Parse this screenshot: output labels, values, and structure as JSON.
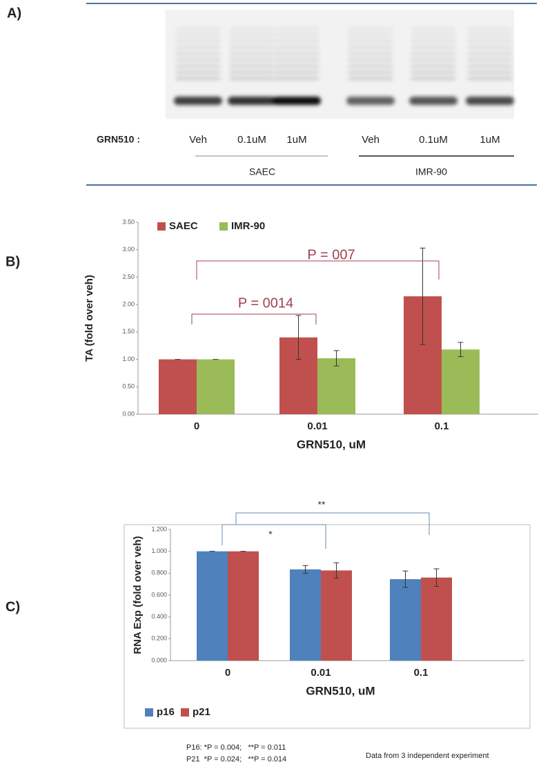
{
  "gel": {
    "panel_label": "A)",
    "row_label": "GRN510 :",
    "lanes": [
      "Veh",
      "0.1uM",
      "1uM",
      "Veh",
      "0.1uM",
      "1uM"
    ],
    "groups": [
      "SAEC",
      "IMR-90"
    ]
  },
  "chart_data": [
    {
      "type": "bar",
      "panel_label": "B)",
      "y_label": "TA (fold over veh)",
      "x_label": "GRN510, uM",
      "categories": [
        "0",
        "0.01",
        "0.1"
      ],
      "series": [
        {
          "name": "SAEC",
          "color": "#c0504d",
          "values": [
            1.0,
            1.4,
            2.15
          ],
          "errors": [
            0,
            0.4,
            0.88
          ]
        },
        {
          "name": "IMR-90",
          "color": "#9bbb59",
          "values": [
            1.0,
            1.02,
            1.18
          ],
          "errors": [
            0,
            0.14,
            0.13
          ]
        }
      ],
      "ylim": [
        0,
        3.5
      ],
      "yticks": [
        {
          "value": 0,
          "label": "0.00"
        },
        {
          "value": 0.5,
          "label": "0.50"
        },
        {
          "value": 1,
          "label": "1.00"
        },
        {
          "value": 1.5,
          "label": "1.50"
        },
        {
          "value": 2,
          "label": "2.00"
        },
        {
          "value": 2.5,
          "label": "2.50"
        },
        {
          "value": 3,
          "label": "3.00"
        },
        {
          "value": 3.5,
          "label": "3.50"
        }
      ],
      "legend": "top-left",
      "annotations": [
        "P = 0014",
        "P = 007"
      ]
    },
    {
      "type": "bar",
      "panel_label": "C)",
      "y_label": "RNA Exp (fold over veh)",
      "x_label": "GRN510, uM",
      "categories": [
        "0",
        "0.01",
        "0.1"
      ],
      "series": [
        {
          "name": "p16",
          "color": "#4f81bd",
          "values": [
            1.0,
            0.835,
            0.745
          ],
          "errors": [
            0,
            0.035,
            0.075
          ]
        },
        {
          "name": "p21",
          "color": "#c0504d",
          "values": [
            1.0,
            0.825,
            0.76
          ],
          "errors": [
            0,
            0.07,
            0.08
          ]
        }
      ],
      "ylim": [
        0,
        1.2
      ],
      "yticks": [
        {
          "value": 0,
          "label": "0.000"
        },
        {
          "value": 0.2,
          "label": "0.200"
        },
        {
          "value": 0.4,
          "label": "0.400"
        },
        {
          "value": 0.6,
          "label": "0.600"
        },
        {
          "value": 0.8,
          "label": "0.800"
        },
        {
          "value": 1,
          "label": "1.000"
        },
        {
          "value": 1.2,
          "label": "1.200"
        }
      ],
      "legend": "bottom-left",
      "annotations": [
        "*",
        "**"
      ],
      "footnotes": [
        "P16: *P = 0.004;   **P = 0.011",
        "P21  *P = 0.024;   **P = 0.014",
        "Data from 3 independent experiment"
      ]
    }
  ]
}
